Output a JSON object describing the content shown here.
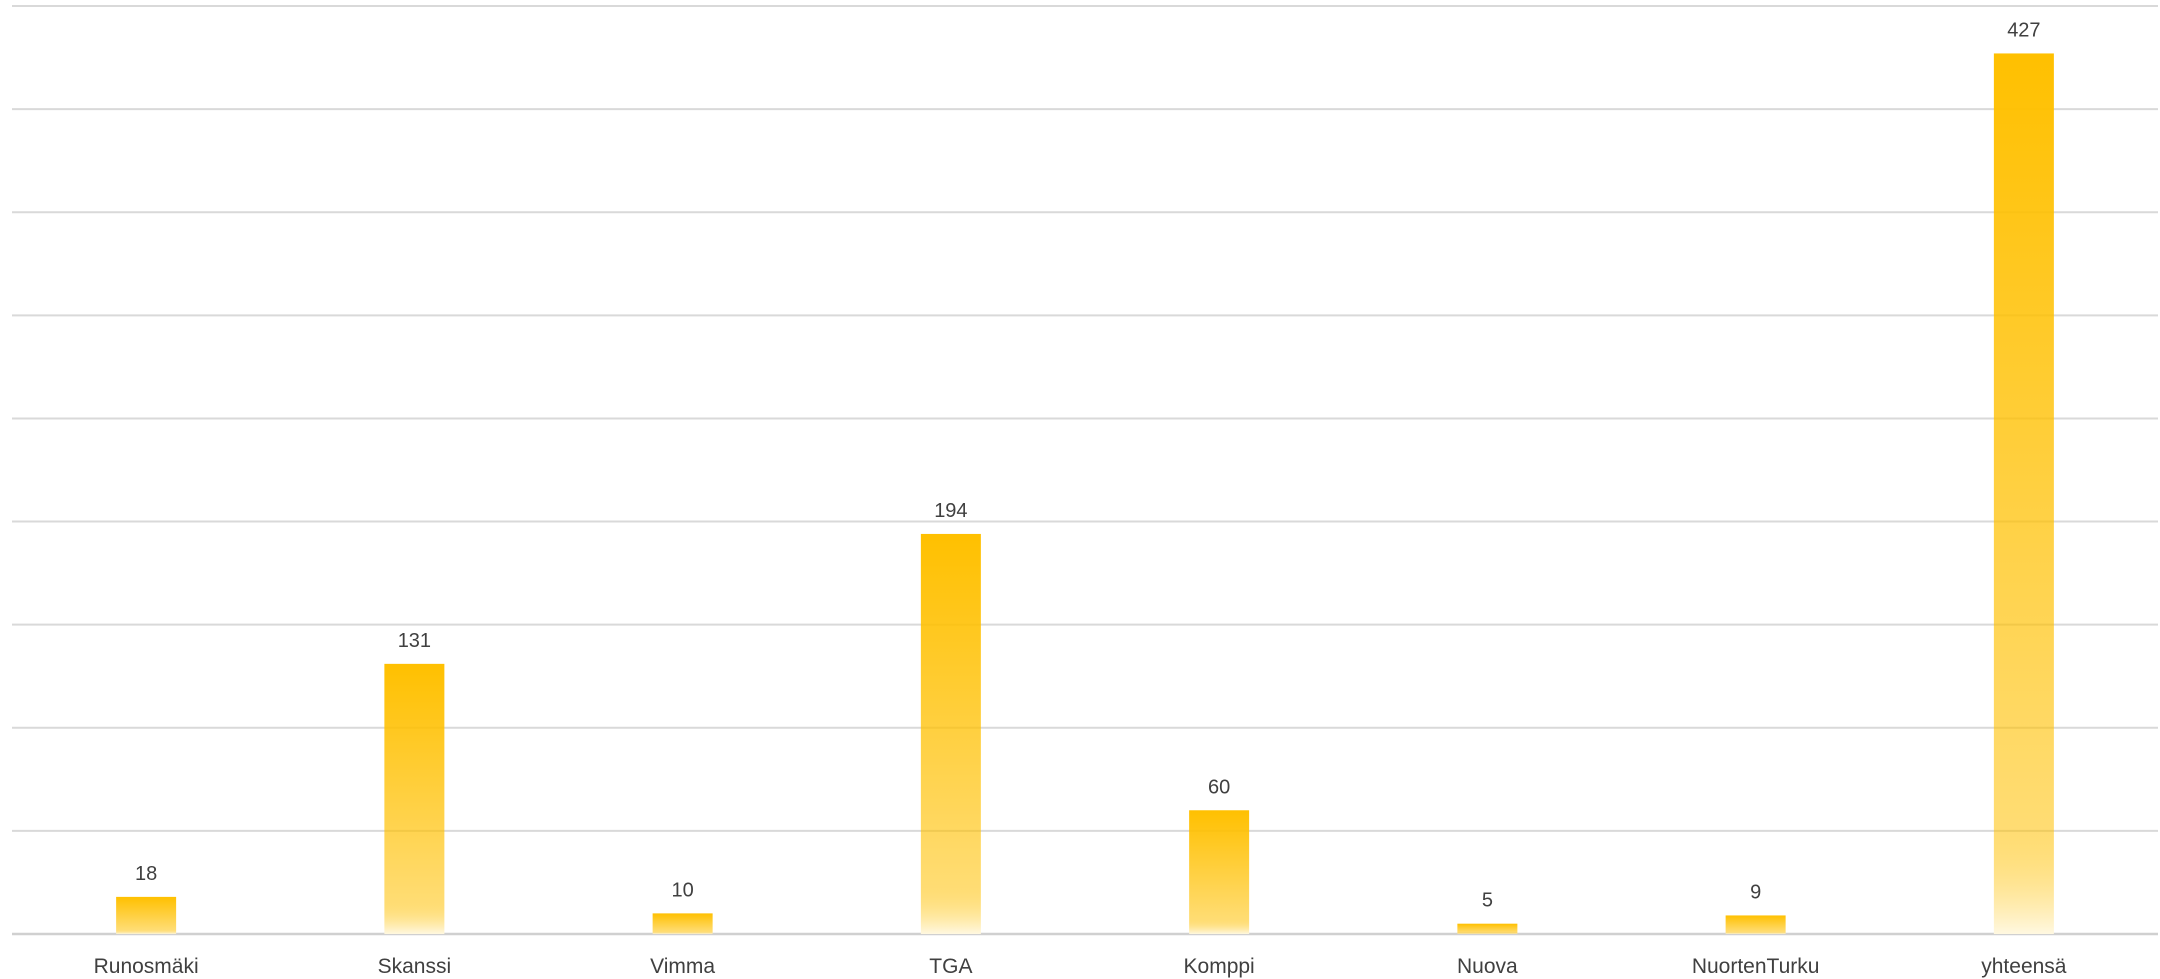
{
  "chart_data": {
    "type": "bar",
    "categories": [
      "Runosmäki",
      "Skanssi",
      "Vimma",
      "TGA",
      "Komppi",
      "Nuova",
      "NuortenTurku",
      "yhteensä"
    ],
    "values": [
      18,
      131,
      10,
      194,
      60,
      5,
      9,
      427
    ],
    "ylim": [
      0,
      450
    ],
    "ytick_step": 50,
    "grid": true,
    "legend": "none",
    "bar_color": "#FFC000",
    "bar_fade_color": "#FFF8E1"
  }
}
